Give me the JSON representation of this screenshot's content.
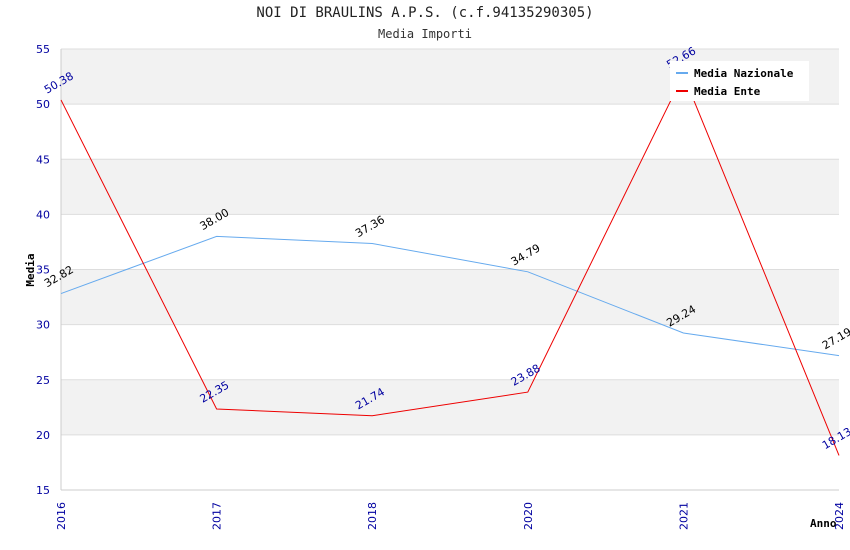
{
  "chart_data": {
    "type": "line",
    "title": "NOI DI BRAULINS A.P.S. (c.f.94135290305)",
    "subtitle": "Media Importi",
    "xlabel": "Anno",
    "ylabel": "Media",
    "ylim": [
      15,
      55
    ],
    "y_ticks": [
      "15",
      "20",
      "25",
      "30",
      "35",
      "40",
      "45",
      "50",
      "55"
    ],
    "categories": [
      "2016",
      "2017",
      "2018",
      "2020",
      "2021",
      "2024"
    ],
    "grid": true,
    "legend": "top-right",
    "series": [
      {
        "name": "Media Nazionale",
        "color": "#66aaee",
        "values": [
          32.82,
          38.0,
          37.36,
          34.79,
          29.24,
          27.19
        ],
        "labels": [
          "32.82",
          "38.00",
          "37.36",
          "34.79",
          "29.24",
          "27.19"
        ]
      },
      {
        "name": "Media Ente",
        "color": "#ee0000",
        "values": [
          50.38,
          22.35,
          21.74,
          23.88,
          52.66,
          18.13
        ],
        "labels": [
          "50.38",
          "22.35",
          "21.74",
          "23.88",
          "52.66",
          "18.13"
        ]
      }
    ]
  }
}
